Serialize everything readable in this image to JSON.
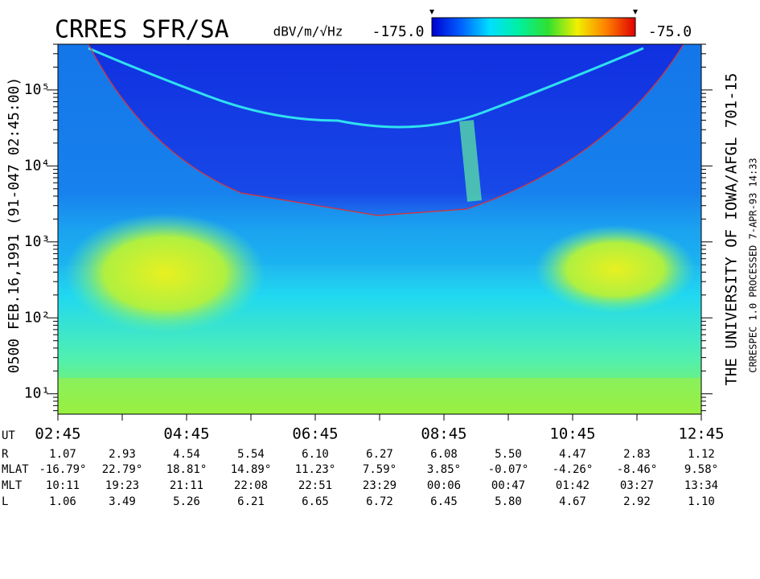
{
  "chart_data": {
    "type": "spectrogram",
    "title": "CRRES SFR/SA",
    "y_label": "0500  FEB.16,1991  (91-047 02:45:00)",
    "right_title": "THE UNIVERSITY OF IOWA/AFGL 701-15",
    "right_note": "CRRESPEC 1.0  PROCESSED  7-APR-93  14:33",
    "colorbar": {
      "unit": "dBV/m/√Hz",
      "ticks": [
        {
          "value": -175,
          "label": "-175.0"
        },
        {
          "value": -75,
          "label": "-75.0"
        }
      ],
      "colors": [
        "#0000d0",
        "#0060ff",
        "#00e0ff",
        "#00f0a0",
        "#30e030",
        "#f0f000",
        "#ff8000",
        "#e00000"
      ]
    },
    "log_y": true,
    "ylim": [
      5.4,
      400000
    ],
    "yticks": [
      {
        "value": 10,
        "label": "10¹"
      },
      {
        "value": 100,
        "label": "10²"
      },
      {
        "value": 1000,
        "label": "10³"
      },
      {
        "value": 10000,
        "label": "10⁴"
      },
      {
        "value": 100000,
        "label": "10⁵"
      }
    ],
    "x_label": "UT",
    "categories": [
      "02:45",
      null,
      "04:45",
      null,
      "06:45",
      null,
      "08:45",
      null,
      "10:45",
      null,
      "12:45"
    ],
    "ephemeris": [
      {
        "label": "R",
        "values": [
          "1.07",
          "2.93",
          "4.54",
          "5.54",
          "6.10",
          "6.27",
          "6.08",
          "5.50",
          "4.47",
          "2.83",
          "1.12"
        ]
      },
      {
        "label": "MLAT",
        "values": [
          "-16.79°",
          "22.79°",
          "18.81°",
          "14.89°",
          "11.23°",
          "7.59°",
          "3.85°",
          "-0.07°",
          "-4.26°",
          "-8.46°",
          "9.58°"
        ]
      },
      {
        "label": "MLT",
        "values": [
          "10:11",
          "19:23",
          "21:11",
          "22:08",
          "22:51",
          "23:29",
          "00:06",
          "00:47",
          "01:42",
          "03:27",
          "13:34"
        ]
      },
      {
        "label": "L",
        "values": [
          "1.06",
          "3.49",
          "5.26",
          "6.21",
          "6.65",
          "6.72",
          "6.45",
          "5.80",
          "4.67",
          "2.92",
          "1.10"
        ]
      }
    ]
  }
}
